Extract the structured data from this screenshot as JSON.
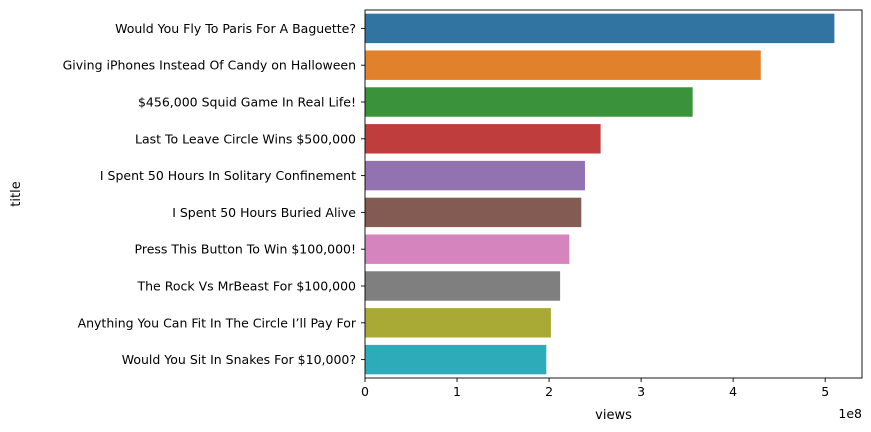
{
  "chart_data": {
    "type": "bar",
    "orientation": "horizontal",
    "xlabel": "views",
    "ylabel": "title",
    "x_offset_text": "1e8",
    "xlim": [
      0,
      5.4
    ],
    "x_ticks": [
      0,
      1,
      2,
      3,
      4,
      5
    ],
    "grid": false,
    "categories": [
      "Would You Fly To Paris For A Baguette?",
      "Giving iPhones Instead Of Candy on Halloween",
      "$456,000 Squid Game In Real Life!",
      "Last To Leave Circle Wins $500,000",
      "I Spent 50 Hours In Solitary Confinement",
      "I Spent 50 Hours Buried Alive",
      "Press This Button To Win $100,000!",
      "The Rock Vs MrBeast For $100,000",
      "Anything You Can Fit In The Circle I’ll Pay For",
      "Would You Sit In Snakes For $10,000?"
    ],
    "values": [
      5.1,
      4.3,
      3.56,
      2.56,
      2.39,
      2.35,
      2.22,
      2.12,
      2.02,
      1.97
    ],
    "colors": [
      "#3274a1",
      "#e1812c",
      "#3a923a",
      "#c03d3e",
      "#9372b2",
      "#845b53",
      "#d684bd",
      "#7f7f7f",
      "#a9aa35",
      "#2eabb8"
    ]
  }
}
